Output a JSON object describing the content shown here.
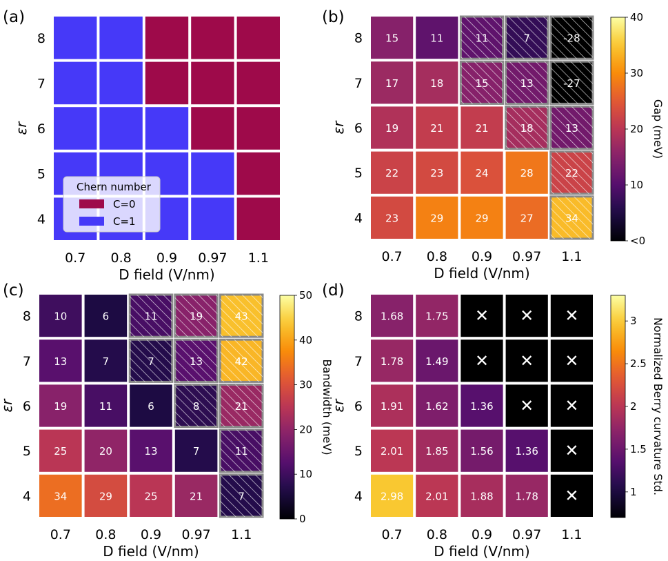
{
  "chart_data": [
    {
      "type": "heatmap",
      "panel_label": "(a)",
      "title": "",
      "xlabel": "D field (V/nm)",
      "ylabel": "εr",
      "x_ticks": [
        "0.7",
        "0.8",
        "0.9",
        "0.97",
        "1.1"
      ],
      "y_ticks": [
        "8",
        "7",
        "6",
        "5",
        "4"
      ],
      "values": [
        [
          1,
          1,
          0,
          0,
          0
        ],
        [
          1,
          1,
          0,
          0,
          0
        ],
        [
          1,
          1,
          1,
          0,
          0
        ],
        [
          1,
          1,
          1,
          1,
          0
        ],
        [
          1,
          1,
          1,
          1,
          0
        ]
      ],
      "show_values": false,
      "legend": {
        "title": "Chern number",
        "items": [
          {
            "label": "C=0",
            "value": 0,
            "color": "#9e0a4a"
          },
          {
            "label": "C=1",
            "value": 1,
            "color": "#4639f8"
          }
        ]
      }
    },
    {
      "type": "heatmap",
      "panel_label": "(b)",
      "xlabel": "D field (V/nm)",
      "ylabel": "εr",
      "x_ticks": [
        "0.7",
        "0.8",
        "0.9",
        "0.97",
        "1.1"
      ],
      "y_ticks": [
        "8",
        "7",
        "6",
        "5",
        "4"
      ],
      "values": [
        [
          15,
          11,
          11,
          7,
          -28
        ],
        [
          17,
          18,
          15,
          13,
          -27
        ],
        [
          19,
          21,
          21,
          18,
          13
        ],
        [
          22,
          23,
          24,
          28,
          22
        ],
        [
          23,
          29,
          29,
          27,
          34
        ]
      ],
      "hatched": [
        [
          false,
          false,
          true,
          true,
          true
        ],
        [
          false,
          false,
          true,
          true,
          true
        ],
        [
          false,
          false,
          false,
          true,
          true
        ],
        [
          false,
          false,
          false,
          false,
          true
        ],
        [
          false,
          false,
          false,
          false,
          true
        ]
      ],
      "show_values": true,
      "colorbar": {
        "label": "Gap (meV)",
        "range": [
          0,
          40
        ],
        "ticks": [
          "40",
          "30",
          "20",
          "10",
          "<0"
        ],
        "tick_values": [
          40,
          30,
          20,
          10,
          0
        ]
      }
    },
    {
      "type": "heatmap",
      "panel_label": "(c)",
      "xlabel": "D field (V/nm)",
      "ylabel": "εr",
      "x_ticks": [
        "0.7",
        "0.8",
        "0.9",
        "0.97",
        "1.1"
      ],
      "y_ticks": [
        "8",
        "7",
        "6",
        "5",
        "4"
      ],
      "values": [
        [
          10,
          6,
          11,
          19,
          43
        ],
        [
          13,
          7,
          7,
          13,
          42
        ],
        [
          19,
          11,
          6,
          8,
          21
        ],
        [
          25,
          20,
          13,
          7,
          11
        ],
        [
          34,
          29,
          25,
          21,
          7
        ]
      ],
      "hatched": [
        [
          false,
          false,
          true,
          true,
          true
        ],
        [
          false,
          false,
          true,
          true,
          true
        ],
        [
          false,
          false,
          false,
          true,
          true
        ],
        [
          false,
          false,
          false,
          false,
          true
        ],
        [
          false,
          false,
          false,
          false,
          true
        ]
      ],
      "show_values": true,
      "colorbar": {
        "label": "Bandwidth (meV)",
        "range": [
          0,
          50
        ],
        "ticks": [
          "50",
          "40",
          "30",
          "20",
          "10",
          "0"
        ],
        "tick_values": [
          50,
          40,
          30,
          20,
          10,
          0
        ]
      }
    },
    {
      "type": "heatmap",
      "panel_label": "(d)",
      "xlabel": "D field (V/nm)",
      "ylabel": "εr",
      "x_ticks": [
        "0.7",
        "0.8",
        "0.9",
        "0.97",
        "1.1"
      ],
      "y_ticks": [
        "8",
        "7",
        "6",
        "5",
        "4"
      ],
      "values": [
        [
          "1.68",
          "1.75",
          null,
          null,
          null
        ],
        [
          "1.78",
          "1.49",
          null,
          null,
          null
        ],
        [
          "1.91",
          "1.62",
          "1.36",
          null,
          null
        ],
        [
          "2.01",
          "1.85",
          "1.56",
          "1.36",
          null
        ],
        [
          "2.98",
          "2.01",
          "1.88",
          "1.78",
          null
        ]
      ],
      "missing_marker": "✕",
      "show_values": true,
      "colorbar": {
        "label": "Normalized Berry curvature Std.",
        "range": [
          0.7,
          3.3
        ],
        "ticks": [
          "3",
          "2.5",
          "2",
          "1.5",
          "1"
        ],
        "tick_values": [
          3,
          2.5,
          2,
          1.5,
          1
        ]
      }
    }
  ]
}
